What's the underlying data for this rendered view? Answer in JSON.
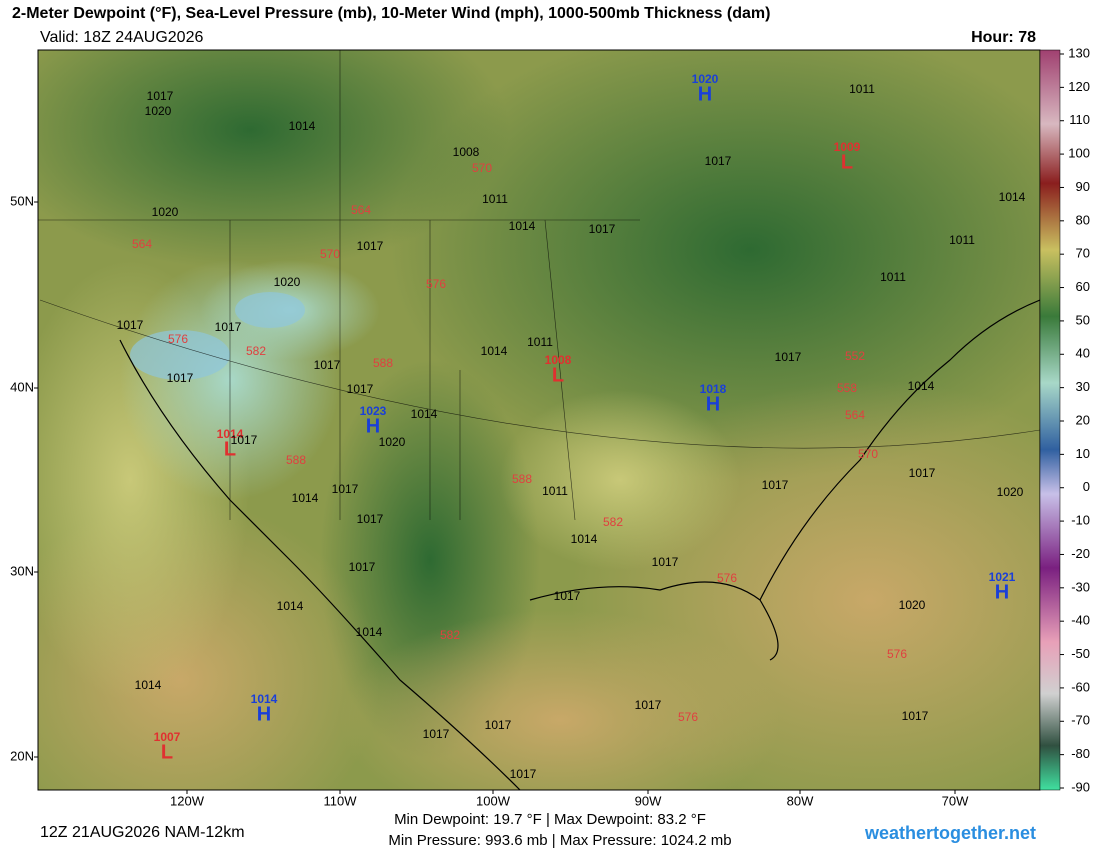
{
  "header": {
    "title": "2-Meter Dewpoint (°F), Sea-Level Pressure (mb), 10-Meter Wind (mph), 1000-500mb Thickness (dam)",
    "valid": "Valid: 18Z 24AUG2026",
    "hour": "Hour: 78"
  },
  "map": {
    "lat_labels": [
      "50N",
      "40N",
      "30N",
      "20N"
    ],
    "lon_labels": [
      "120W",
      "110W",
      "100W",
      "90W",
      "80W",
      "70W"
    ],
    "centers": [
      {
        "letter": "H",
        "value": 1020
      },
      {
        "letter": "L",
        "value": 1009
      },
      {
        "letter": "L",
        "value": 1008
      },
      {
        "letter": "H",
        "value": 1018
      },
      {
        "letter": "H",
        "value": 1023
      },
      {
        "letter": "L",
        "value": 1014
      },
      {
        "letter": "H",
        "value": 1021
      },
      {
        "letter": "H",
        "value": 1014
      },
      {
        "letter": "L",
        "value": 1007
      }
    ],
    "isobar_labels": [
      1017,
      1020,
      1014,
      1008,
      1011,
      1020,
      1014,
      1017,
      1017,
      1011,
      1017,
      1014,
      1011,
      1011,
      1020,
      1017,
      1017,
      1011,
      1014,
      1017,
      1017,
      1017,
      1014,
      1017,
      1014,
      1020,
      1017,
      1014,
      1017,
      1011,
      1017,
      1017,
      1017,
      1020,
      1014,
      1017,
      1017,
      1017,
      1014,
      1020,
      1014,
      1014,
      1017,
      1017,
      1017,
      1017,
      1017
    ],
    "thickness_labels": [
      570,
      564,
      564,
      570,
      576,
      576,
      582,
      588,
      552,
      558,
      564,
      570,
      588,
      588,
      582,
      576,
      582,
      576,
      576
    ]
  },
  "colorbar": {
    "ticks": [
      130,
      120,
      110,
      100,
      90,
      80,
      70,
      60,
      50,
      40,
      30,
      20,
      10,
      0,
      -10,
      -20,
      -30,
      -40,
      -50,
      -60,
      -70,
      -80,
      -90
    ]
  },
  "footer": {
    "run": "12Z 21AUG2026 NAM-12km",
    "dewpoint": "Min Dewpoint:  19.7 °F | Max Dewpoint:  83.2 °F",
    "pressure": "Min Pressure: 993.6 mb | Max Pressure: 1024.2 mb",
    "site": "weathertogether.net"
  }
}
